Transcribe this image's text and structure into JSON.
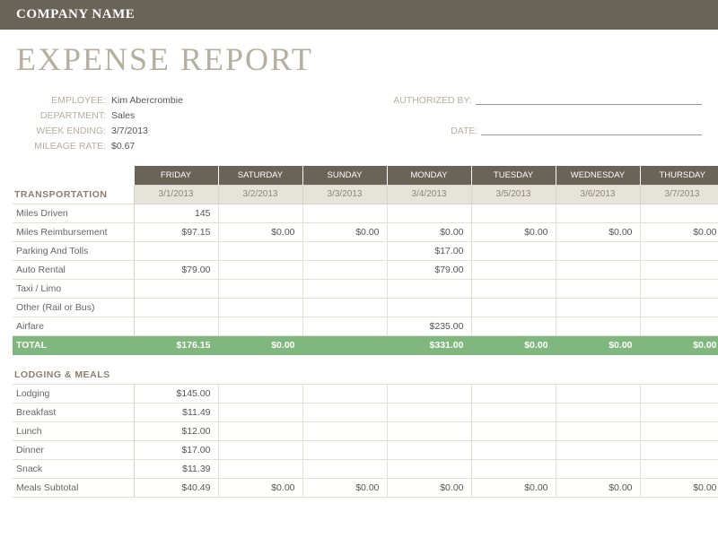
{
  "company_name": "COMPANY NAME",
  "title": "EXPENSE REPORT",
  "info": {
    "employee_label": "EMPLOYEE:",
    "employee": "Kim Abercrombie",
    "department_label": "DEPARTMENT:",
    "department": "Sales",
    "week_ending_label": "WEEK ENDING:",
    "week_ending": "3/7/2013",
    "mileage_rate_label": "MILEAGE RATE:",
    "mileage_rate": "$0.67",
    "authorized_by_label": "AUTHORIZED BY:",
    "date_label": "DATE:"
  },
  "days": [
    "FRIDAY",
    "SATURDAY",
    "SUNDAY",
    "MONDAY",
    "TUESDAY",
    "WEDNESDAY",
    "THURSDAY"
  ],
  "dates": [
    "3/1/2013",
    "3/2/2013",
    "3/3/2013",
    "3/4/2013",
    "3/5/2013",
    "3/6/2013",
    "3/7/2013"
  ],
  "sections": {
    "transportation": {
      "label": "TRANSPORTATION",
      "rows": [
        {
          "label": "Miles Driven",
          "cells": [
            "145",
            "",
            "",
            "",
            "",
            "",
            ""
          ]
        },
        {
          "label": "Miles Reimbursement",
          "cells": [
            "$97.15",
            "$0.00",
            "$0.00",
            "$0.00",
            "$0.00",
            "$0.00",
            "$0.00"
          ]
        },
        {
          "label": "Parking And Tolls",
          "cells": [
            "",
            "",
            "",
            "$17.00",
            "",
            "",
            ""
          ]
        },
        {
          "label": "Auto Rental",
          "cells": [
            "$79.00",
            "",
            "",
            "$79.00",
            "",
            "",
            ""
          ]
        },
        {
          "label": "Taxi / Limo",
          "cells": [
            "",
            "",
            "",
            "",
            "",
            "",
            ""
          ]
        },
        {
          "label": "Other (Rail or Bus)",
          "cells": [
            "",
            "",
            "",
            "",
            "",
            "",
            ""
          ]
        },
        {
          "label": "Airfare",
          "cells": [
            "",
            "",
            "",
            "$235.00",
            "",
            "",
            ""
          ]
        }
      ],
      "total": {
        "label": "TOTAL",
        "cells": [
          "$176.15",
          "$0.00",
          "",
          "$331.00",
          "$0.00",
          "$0.00",
          "$0.00"
        ]
      }
    },
    "lodging_meals": {
      "label": "LODGING & MEALS",
      "rows": [
        {
          "label": "Lodging",
          "cells": [
            "$145.00",
            "",
            "",
            "",
            "",
            "",
            ""
          ]
        },
        {
          "label": "Breakfast",
          "cells": [
            "$11.49",
            "",
            "",
            "",
            "",
            "",
            ""
          ]
        },
        {
          "label": "Lunch",
          "cells": [
            "$12.00",
            "",
            "",
            "",
            "",
            "",
            ""
          ]
        },
        {
          "label": "Dinner",
          "cells": [
            "$17.00",
            "",
            "",
            "",
            "",
            "",
            ""
          ]
        },
        {
          "label": "Snack",
          "cells": [
            "$11.39",
            "",
            "",
            "",
            "",
            "",
            ""
          ]
        }
      ],
      "subtotal": {
        "label": "Meals Subtotal",
        "cells": [
          "$40.49",
          "$0.00",
          "$0.00",
          "$0.00",
          "$0.00",
          "$0.00",
          "$0.00"
        ]
      }
    }
  },
  "colors": {
    "header_bg": "#6a6357",
    "title_color": "#b5afa0",
    "date_bg": "#e6e3db",
    "total_bg": "#7fb77e",
    "border": "#e3e0d8"
  }
}
